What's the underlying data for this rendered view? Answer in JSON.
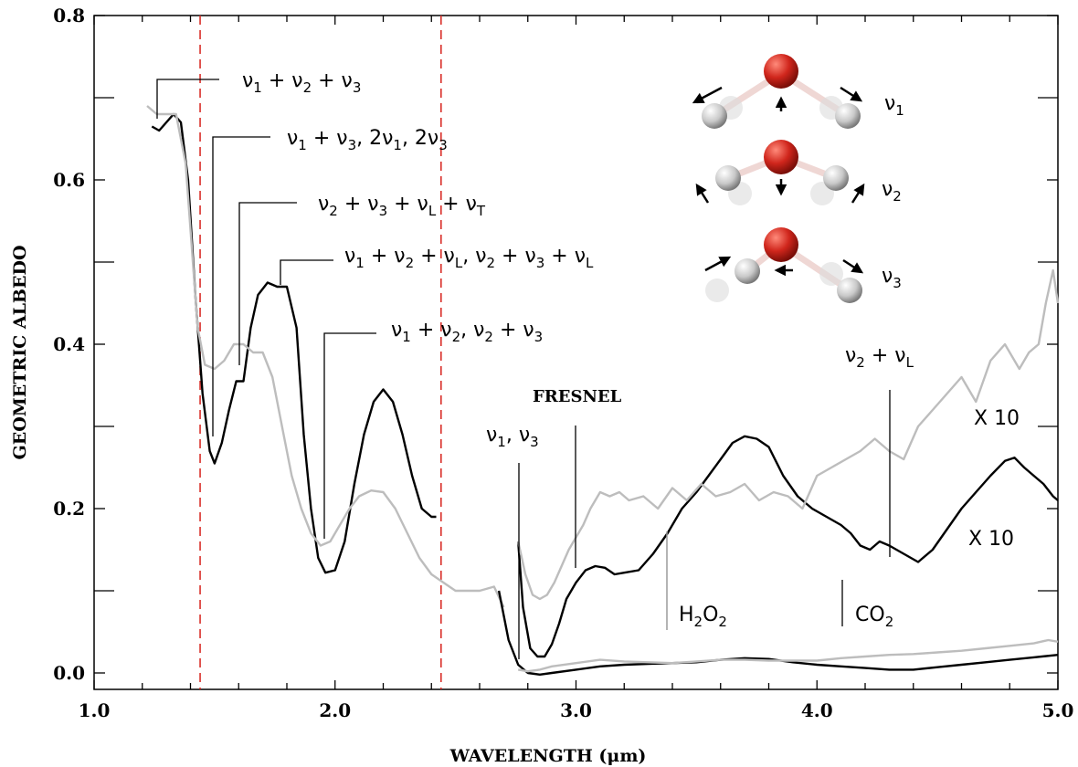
{
  "chart_data": {
    "type": "line",
    "xlabel": "WAVELENGTH (μm)",
    "ylabel": "GEOMETRIC ALBEDO",
    "xlim": [
      1.0,
      5.0
    ],
    "ylim": [
      -0.02,
      0.8
    ],
    "x_ticks": [
      "1.0",
      "2.0",
      "3.0",
      "4.0",
      "5.0"
    ],
    "y_ticks": [
      "0.0",
      "0.2",
      "0.4",
      "0.6",
      "0.8"
    ],
    "x_tick_values": [
      1.0,
      2.0,
      3.0,
      4.0,
      5.0
    ],
    "y_tick_values": [
      0.0,
      0.2,
      0.4,
      0.6,
      0.8
    ],
    "grid": false,
    "vlines": [
      1.44,
      2.44
    ],
    "series": [
      {
        "id": "black-main",
        "color": "#000000",
        "x": [
          1.24,
          1.27,
          1.3,
          1.33,
          1.36,
          1.39,
          1.42,
          1.45,
          1.48,
          1.5,
          1.53,
          1.56,
          1.59,
          1.62,
          1.65,
          1.68,
          1.72,
          1.76,
          1.8,
          1.84,
          1.87,
          1.9,
          1.93,
          1.96,
          2.0,
          2.04,
          2.08,
          2.12,
          2.16,
          2.2,
          2.24,
          2.28,
          2.32,
          2.36,
          2.4,
          2.42
        ],
        "y": [
          0.665,
          0.66,
          0.67,
          0.68,
          0.67,
          0.6,
          0.46,
          0.34,
          0.27,
          0.255,
          0.28,
          0.32,
          0.355,
          0.355,
          0.42,
          0.46,
          0.475,
          0.47,
          0.47,
          0.42,
          0.29,
          0.2,
          0.14,
          0.122,
          0.125,
          0.16,
          0.23,
          0.29,
          0.33,
          0.345,
          0.33,
          0.29,
          0.24,
          0.2,
          0.19,
          0.19
        ]
      },
      {
        "id": "gray-main",
        "color": "#bdbdbd",
        "x": [
          1.22,
          1.26,
          1.3,
          1.34,
          1.38,
          1.41,
          1.43,
          1.46,
          1.5,
          1.54,
          1.58,
          1.62,
          1.66,
          1.7,
          1.74,
          1.78,
          1.82,
          1.86,
          1.9,
          1.94,
          1.98,
          2.02,
          2.06,
          2.1,
          2.15,
          2.2,
          2.25,
          2.3,
          2.35,
          2.4,
          2.45,
          2.5,
          2.55,
          2.6,
          2.66,
          2.7
        ],
        "y": [
          0.69,
          0.68,
          0.68,
          0.68,
          0.62,
          0.5,
          0.42,
          0.375,
          0.37,
          0.38,
          0.4,
          0.4,
          0.39,
          0.39,
          0.36,
          0.3,
          0.24,
          0.2,
          0.17,
          0.155,
          0.16,
          0.18,
          0.2,
          0.215,
          0.222,
          0.22,
          0.2,
          0.17,
          0.14,
          0.12,
          0.11,
          0.1,
          0.1,
          0.1,
          0.105,
          0.08
        ]
      },
      {
        "id": "black-x10",
        "color": "#000000",
        "x": [
          2.76,
          2.78,
          2.81,
          2.84,
          2.87,
          2.9,
          2.93,
          2.96,
          3.0,
          3.04,
          3.08,
          3.12,
          3.16,
          3.2,
          3.26,
          3.32,
          3.38,
          3.44,
          3.5,
          3.55,
          3.6,
          3.65,
          3.7,
          3.75,
          3.8,
          3.86,
          3.92,
          3.98,
          4.04,
          4.1,
          4.14,
          4.18,
          4.22,
          4.26,
          4.3,
          4.36,
          4.42,
          4.48,
          4.54,
          4.6,
          4.66,
          4.72,
          4.78,
          4.82,
          4.86,
          4.9,
          4.94,
          4.98,
          5.0
        ],
        "y": [
          0.16,
          0.08,
          0.03,
          0.02,
          0.02,
          0.035,
          0.06,
          0.09,
          0.11,
          0.125,
          0.13,
          0.128,
          0.12,
          0.122,
          0.125,
          0.145,
          0.17,
          0.2,
          0.22,
          0.24,
          0.26,
          0.28,
          0.288,
          0.285,
          0.275,
          0.24,
          0.215,
          0.2,
          0.19,
          0.18,
          0.17,
          0.155,
          0.15,
          0.16,
          0.155,
          0.145,
          0.135,
          0.15,
          0.175,
          0.2,
          0.22,
          0.24,
          0.258,
          0.262,
          0.25,
          0.24,
          0.23,
          0.215,
          0.21
        ]
      },
      {
        "id": "gray-x10",
        "color": "#bdbdbd",
        "x": [
          2.76,
          2.79,
          2.82,
          2.85,
          2.88,
          2.91,
          2.94,
          2.97,
          3.0,
          3.03,
          3.06,
          3.1,
          3.14,
          3.18,
          3.22,
          3.28,
          3.34,
          3.4,
          3.46,
          3.52,
          3.58,
          3.64,
          3.7,
          3.76,
          3.82,
          3.88,
          3.94,
          4.0,
          4.06,
          4.12,
          4.18,
          4.24,
          4.3,
          4.36,
          4.42,
          4.48,
          4.54,
          4.6,
          4.66,
          4.72,
          4.78,
          4.84,
          4.88,
          4.92,
          4.95,
          4.98,
          5.0
        ],
        "y": [
          0.16,
          0.12,
          0.095,
          0.09,
          0.095,
          0.11,
          0.13,
          0.15,
          0.165,
          0.18,
          0.2,
          0.22,
          0.215,
          0.22,
          0.21,
          0.215,
          0.2,
          0.225,
          0.21,
          0.23,
          0.215,
          0.22,
          0.23,
          0.21,
          0.22,
          0.215,
          0.2,
          0.24,
          0.25,
          0.26,
          0.27,
          0.285,
          0.27,
          0.26,
          0.3,
          0.32,
          0.34,
          0.36,
          0.33,
          0.38,
          0.4,
          0.37,
          0.39,
          0.4,
          0.45,
          0.49,
          0.45
        ]
      },
      {
        "id": "black-low",
        "color": "#000000",
        "x": [
          2.68,
          2.72,
          2.76,
          2.8,
          2.85,
          2.9,
          3.0,
          3.1,
          3.2,
          3.3,
          3.4,
          3.5,
          3.6,
          3.7,
          3.8,
          3.9,
          4.0,
          4.1,
          4.2,
          4.3,
          4.4,
          4.5,
          4.6,
          4.7,
          4.8,
          4.9,
          5.0
        ],
        "y": [
          0.1,
          0.04,
          0.01,
          0.0,
          -0.002,
          0.0,
          0.004,
          0.008,
          0.01,
          0.011,
          0.012,
          0.013,
          0.016,
          0.018,
          0.017,
          0.013,
          0.01,
          0.008,
          0.006,
          0.004,
          0.004,
          0.007,
          0.01,
          0.013,
          0.016,
          0.019,
          0.022
        ]
      },
      {
        "id": "gray-low",
        "color": "#bdbdbd",
        "x": [
          2.76,
          2.8,
          2.85,
          2.9,
          3.0,
          3.1,
          3.2,
          3.3,
          3.4,
          3.5,
          3.6,
          3.7,
          3.8,
          3.9,
          4.0,
          4.1,
          4.2,
          4.3,
          4.4,
          4.5,
          4.6,
          4.7,
          4.8,
          4.9,
          4.96,
          5.0
        ],
        "y": [
          0.004,
          0.002,
          0.004,
          0.008,
          0.012,
          0.016,
          0.014,
          0.013,
          0.012,
          0.014,
          0.016,
          0.016,
          0.015,
          0.015,
          0.015,
          0.018,
          0.02,
          0.022,
          0.023,
          0.025,
          0.027,
          0.03,
          0.033,
          0.036,
          0.04,
          0.038
        ]
      }
    ]
  },
  "annotations": {
    "a1": {
      "nu": "ν",
      "s1": "1",
      "plus": " + ",
      "s2": "2",
      "s3": "3"
    },
    "a2": {
      "s1": "1",
      "s3": "3",
      "mid": ",  2",
      "s1b": "1",
      "s3b": "3"
    },
    "a3": {
      "s2": "2",
      "s3": "3",
      "sL": "L",
      "sT": "T"
    },
    "a4": {
      "s1": "1",
      "s2": "2",
      "sL": "L",
      "comma": ", ",
      "s2b": "2",
      "s3b": "3",
      "sLb": "L"
    },
    "a5": {
      "s1": "1",
      "s2": "2",
      "comma": ", ",
      "s2b": "2",
      "s3b": "3"
    },
    "fresnel": "FRESNEL",
    "nu13": {
      "s1": "1",
      "comma": ", ",
      "s3": "3"
    },
    "nu2L": {
      "s2": "2",
      "sL": "L"
    },
    "h2o2": {
      "H": "H",
      "s2": "2",
      "O": "O",
      "s2b": "2"
    },
    "co2": {
      "CO": "CO",
      "s2": "2"
    },
    "x10_gray": "X 10",
    "x10_black": "X 10",
    "mode_labels": [
      {
        "s": "1"
      },
      {
        "s": "2"
      },
      {
        "s": "3"
      }
    ]
  }
}
